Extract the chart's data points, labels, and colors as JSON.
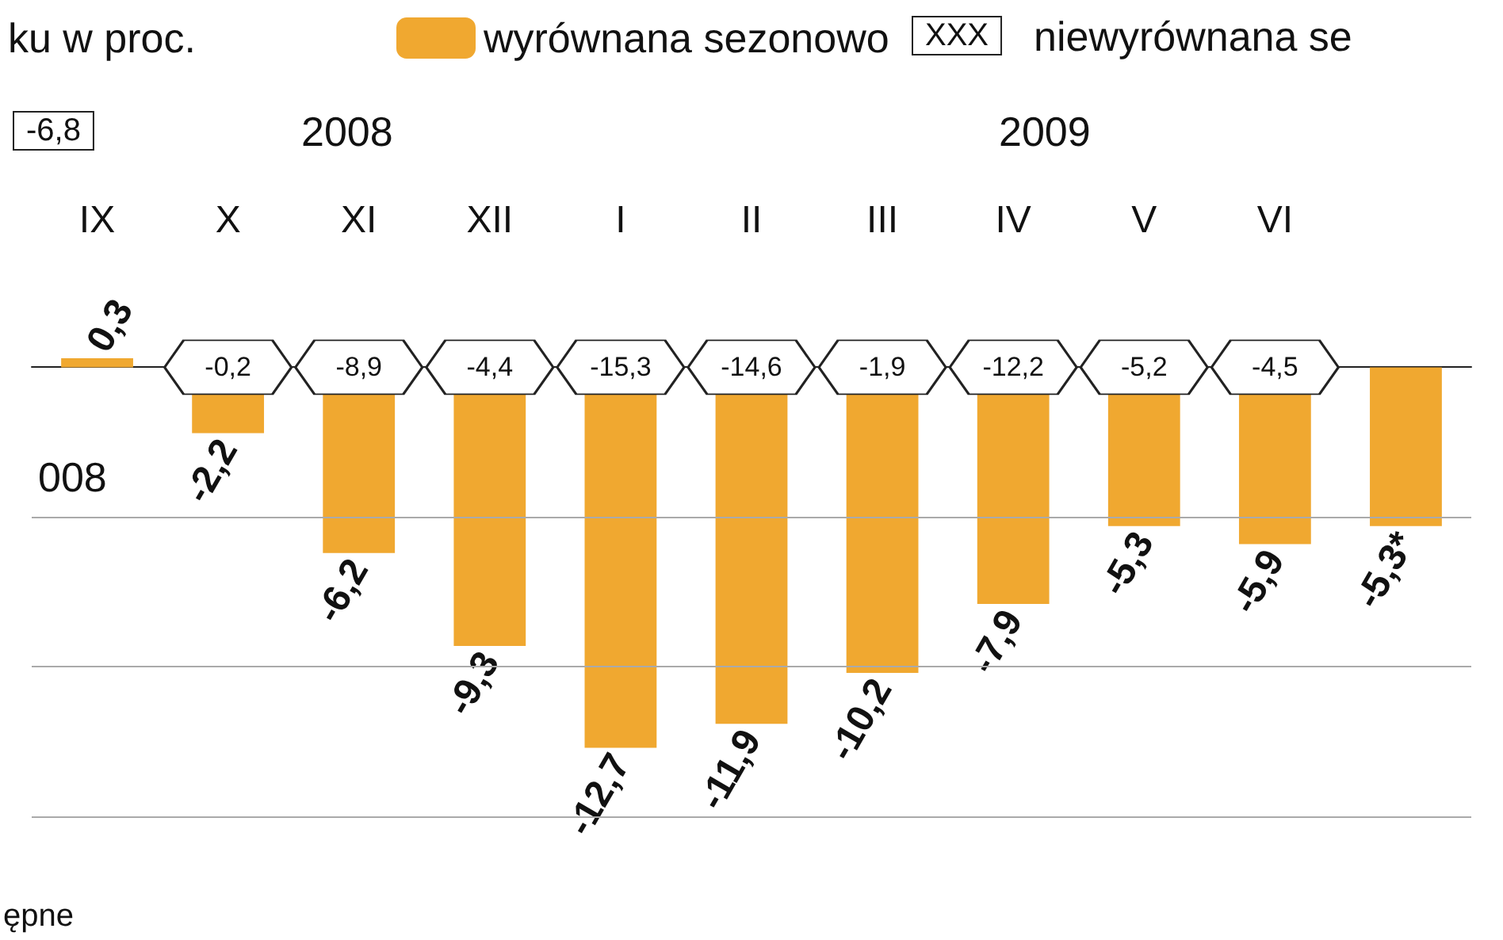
{
  "chart_data": {
    "type": "bar",
    "title": "ku w proc.",
    "categories": [
      "IX",
      "X",
      "XI",
      "XII",
      "I",
      "II",
      "III",
      "IV",
      "V",
      "VI",
      null
    ],
    "series": [
      {
        "name": "wyrównana sezonowo",
        "color": "#f0a830",
        "values": [
          0.3,
          -2.2,
          -6.2,
          -9.3,
          -12.7,
          -11.9,
          -10.2,
          -7.9,
          -5.3,
          -5.9,
          -5.3
        ],
        "value_labels": [
          "0,3",
          "-2,2",
          "-6,2",
          "-9,3",
          "-12,7",
          "-11,9",
          "-10,2",
          "-7,9",
          "-5,3",
          "-5,9",
          "-5,3*"
        ]
      }
    ],
    "annotations": [
      "XXX",
      "niewyrównana se",
      "2008",
      "2009",
      "008",
      "ępne",
      "-6,8",
      {
        "text": "-0,2",
        "x": "X",
        "y": 0
      },
      {
        "text": "-8,9",
        "x": "XI",
        "y": 0
      },
      {
        "text": "-4,4",
        "x": "XII",
        "y": 0
      },
      {
        "text": "-15,3",
        "x": "I",
        "y": 0
      },
      {
        "text": "-14,6",
        "x": "II",
        "y": 0
      },
      {
        "text": "-1,9",
        "x": "III",
        "y": 0
      },
      {
        "text": "-12,2",
        "x": "IV",
        "y": 0
      },
      {
        "text": "-5,2",
        "x": "V",
        "y": 0
      },
      {
        "text": "-4,5",
        "x": "VI",
        "y": 0
      }
    ],
    "ref_lines": [
      {
        "axis": "y",
        "value": -5,
        "color": "#aaaaaa"
      },
      {
        "axis": "y",
        "value": -10,
        "color": "#aaaaaa"
      },
      {
        "axis": "y",
        "value": -15,
        "color": "#aaaaaa"
      }
    ],
    "tick_labels": "x",
    "legend": "top"
  }
}
